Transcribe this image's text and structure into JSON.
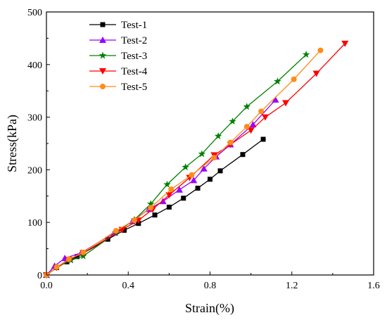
{
  "chart_data": {
    "type": "line",
    "title": "",
    "xlabel": "Strain(%)",
    "ylabel": "Stress(kPa)",
    "xlim": [
      0.0,
      1.6
    ],
    "ylim": [
      0,
      500
    ],
    "xticks": [
      "0.0",
      "0.4",
      "0.8",
      "1.2",
      "1.6"
    ],
    "yticks": [
      "0",
      "100",
      "200",
      "300",
      "400",
      "500"
    ],
    "xtick_values": [
      0.0,
      0.4,
      0.8,
      1.2,
      1.6
    ],
    "ytick_values": [
      0,
      100,
      200,
      300,
      400,
      500
    ],
    "grid": false,
    "legend_position": "top-left",
    "series": [
      {
        "name": "Test-1",
        "color": "#000000",
        "marker": "square",
        "x": [
          0.0,
          0.05,
          0.1,
          0.15,
          0.3,
          0.38,
          0.45,
          0.53,
          0.6,
          0.67,
          0.74,
          0.8,
          0.85,
          0.96,
          1.06
        ],
        "y": [
          0,
          14,
          25,
          35,
          68,
          85,
          98,
          114,
          129,
          146,
          165,
          182,
          198,
          229,
          258
        ]
      },
      {
        "name": "Test-2",
        "color": "#9900ff",
        "marker": "triangle-up",
        "x": [
          0.0,
          0.04,
          0.09,
          0.17,
          0.33,
          0.42,
          0.5,
          0.57,
          0.65,
          0.72,
          0.77,
          0.83,
          0.9,
          1.01,
          1.12
        ],
        "y": [
          0,
          17,
          32,
          42,
          80,
          102,
          125,
          140,
          162,
          180,
          202,
          225,
          248,
          286,
          333
        ]
      },
      {
        "name": "Test-3",
        "color": "#008000",
        "marker": "star",
        "x": [
          0.0,
          0.05,
          0.12,
          0.18,
          0.34,
          0.43,
          0.51,
          0.59,
          0.68,
          0.76,
          0.84,
          0.91,
          0.98,
          1.13,
          1.27
        ],
        "y": [
          0,
          15,
          28,
          36,
          80,
          105,
          135,
          172,
          205,
          230,
          264,
          292,
          320,
          368,
          419
        ]
      },
      {
        "name": "Test-4",
        "color": "#ff0000",
        "marker": "triangle-down",
        "x": [
          0.0,
          0.05,
          0.11,
          0.18,
          0.37,
          0.45,
          0.52,
          0.6,
          0.7,
          0.82,
          0.9,
          1.0,
          1.07,
          1.17,
          1.32,
          1.46
        ],
        "y": [
          0,
          14,
          29,
          42,
          86,
          104,
          125,
          152,
          185,
          228,
          248,
          275,
          300,
          327,
          383,
          440
        ]
      },
      {
        "name": "Test-5",
        "color": "#ff8c1a",
        "marker": "circle",
        "x": [
          0.0,
          0.05,
          0.11,
          0.18,
          0.34,
          0.43,
          0.51,
          0.61,
          0.71,
          0.82,
          0.9,
          0.98,
          1.05,
          1.21,
          1.34
        ],
        "y": [
          0,
          15,
          30,
          43,
          84,
          104,
          128,
          163,
          190,
          223,
          252,
          282,
          311,
          372,
          427
        ]
      }
    ]
  }
}
